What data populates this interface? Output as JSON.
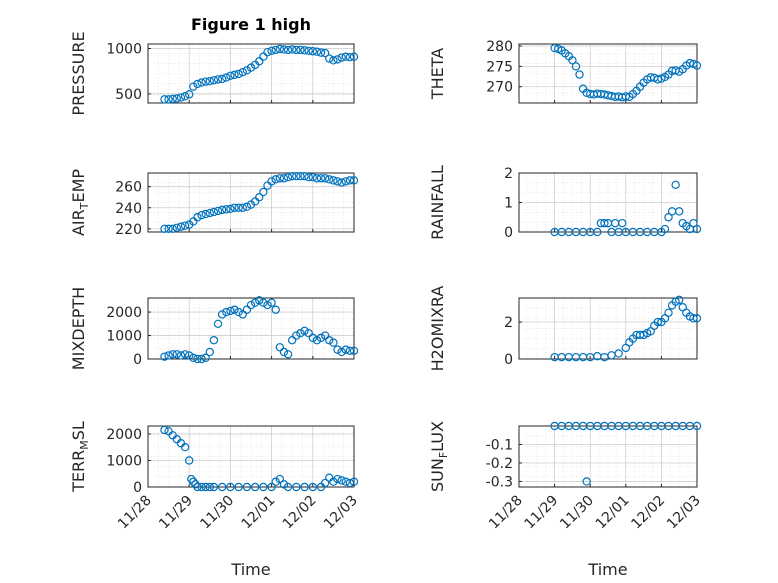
{
  "figure": {
    "title": "Figure 1 high",
    "marker_color": "#0072bd",
    "axis_color": "#262626",
    "grid_color": "#dcdcdc"
  },
  "x_ticks": [
    "11/28",
    "11/29",
    "11/30",
    "12/01",
    "12/02",
    "12/03"
  ],
  "x_label": "Time",
  "chart_data": [
    {
      "type": "scatter",
      "ylabel": "PRESSURE",
      "xlim": [
        0,
        5
      ],
      "ylim": [
        400,
        1050
      ],
      "yticks": [
        500,
        1000
      ],
      "x": [
        0.4,
        0.5,
        0.6,
        0.7,
        0.8,
        0.9,
        1.0,
        1.1,
        1.2,
        1.3,
        1.4,
        1.5,
        1.6,
        1.7,
        1.8,
        1.9,
        2.0,
        2.1,
        2.2,
        2.3,
        2.4,
        2.5,
        2.6,
        2.7,
        2.8,
        2.9,
        3.0,
        3.1,
        3.2,
        3.3,
        3.4,
        3.5,
        3.6,
        3.7,
        3.8,
        3.9,
        4.0,
        4.1,
        4.2,
        4.3,
        4.4,
        4.5,
        4.6,
        4.7,
        4.8,
        4.9,
        5.0
      ],
      "y": [
        440,
        440,
        445,
        450,
        460,
        475,
        495,
        580,
        610,
        625,
        635,
        640,
        650,
        660,
        665,
        680,
        700,
        710,
        720,
        740,
        760,
        790,
        820,
        860,
        910,
        960,
        975,
        985,
        995,
        990,
        985,
        990,
        985,
        985,
        980,
        975,
        970,
        965,
        955,
        950,
        890,
        870,
        880,
        900,
        910,
        905,
        910
      ]
    },
    {
      "type": "scatter",
      "ylabel": "THETA",
      "xlim": [
        0,
        5
      ],
      "ylim": [
        266,
        280.5
      ],
      "yticks": [
        270,
        275,
        280
      ],
      "x": [
        1.0,
        1.1,
        1.2,
        1.3,
        1.4,
        1.5,
        1.6,
        1.7,
        1.8,
        1.9,
        2.0,
        2.1,
        2.2,
        2.3,
        2.4,
        2.5,
        2.6,
        2.7,
        2.8,
        2.9,
        3.0,
        3.1,
        3.2,
        3.3,
        3.4,
        3.5,
        3.6,
        3.7,
        3.8,
        3.9,
        4.0,
        4.1,
        4.2,
        4.3,
        4.4,
        4.5,
        4.6,
        4.7,
        4.8,
        4.9,
        5.0
      ],
      "y": [
        279.5,
        279.3,
        278.9,
        278.2,
        277.5,
        276.5,
        275.0,
        273,
        269.5,
        268.5,
        268.2,
        268.1,
        268.3,
        268.2,
        268.1,
        267.9,
        267.7,
        267.5,
        267.6,
        267.4,
        267.6,
        267.5,
        268.2,
        269,
        270,
        271,
        271.8,
        272.3,
        272.2,
        271.8,
        272,
        272.4,
        273,
        273.9,
        274,
        273.7,
        274.3,
        275.2,
        275.8,
        275.6,
        275.2
      ]
    },
    {
      "type": "scatter",
      "ylabel": "AIR",
      "ylabel_sub": "T",
      "ylabel_rest": "EMP",
      "xlim": [
        0,
        5
      ],
      "ylim": [
        217,
        273
      ],
      "yticks": [
        220,
        240,
        260
      ],
      "x": [
        0.4,
        0.5,
        0.6,
        0.7,
        0.8,
        0.9,
        1.0,
        1.1,
        1.2,
        1.3,
        1.4,
        1.5,
        1.6,
        1.7,
        1.8,
        1.9,
        2.0,
        2.1,
        2.2,
        2.3,
        2.4,
        2.5,
        2.6,
        2.7,
        2.8,
        2.9,
        3.0,
        3.1,
        3.2,
        3.3,
        3.4,
        3.5,
        3.6,
        3.7,
        3.8,
        3.9,
        4.0,
        4.1,
        4.2,
        4.3,
        4.4,
        4.5,
        4.6,
        4.7,
        4.8,
        4.9,
        5.0
      ],
      "y": [
        220,
        220,
        220,
        221,
        222,
        223,
        224,
        227,
        231,
        233,
        234,
        235,
        236,
        237,
        238,
        238.5,
        239,
        240,
        240,
        240,
        241,
        243,
        246,
        250,
        255,
        261,
        265,
        267,
        268,
        268,
        269,
        270,
        270,
        270,
        270,
        269,
        269,
        268,
        268,
        268,
        267,
        266,
        265,
        264,
        265,
        266,
        266
      ]
    },
    {
      "type": "scatter",
      "ylabel": "RAINFALL",
      "xlim": [
        0,
        5
      ],
      "ylim": [
        0,
        2
      ],
      "yticks": [
        0,
        1,
        2
      ],
      "x": [
        1.0,
        1.2,
        1.4,
        1.6,
        1.8,
        2.0,
        2.2,
        2.3,
        2.4,
        2.5,
        2.6,
        2.7,
        2.8,
        2.9,
        3.0,
        3.2,
        3.4,
        3.6,
        3.8,
        4.0,
        4.1,
        4.2,
        4.3,
        4.4,
        4.5,
        4.6,
        4.7,
        4.8,
        4.9,
        5.0
      ],
      "y": [
        0,
        0,
        0,
        0,
        0,
        0,
        0,
        0.3,
        0.3,
        0.3,
        0,
        0.3,
        0,
        0.3,
        0,
        0,
        0,
        0,
        0,
        0,
        0.1,
        0.5,
        0.7,
        1.6,
        0.7,
        0.3,
        0.2,
        0.1,
        0.3,
        0.1
      ]
    },
    {
      "type": "scatter",
      "ylabel": "MIXDEPTH",
      "xlim": [
        0,
        5
      ],
      "ylim": [
        0,
        2600
      ],
      "yticks": [
        0,
        1000,
        2000
      ],
      "x": [
        0.4,
        0.5,
        0.6,
        0.7,
        0.8,
        0.9,
        1.0,
        1.1,
        1.2,
        1.3,
        1.4,
        1.5,
        1.6,
        1.7,
        1.8,
        1.9,
        2.0,
        2.1,
        2.2,
        2.3,
        2.4,
        2.5,
        2.6,
        2.7,
        2.8,
        2.9,
        3.0,
        3.1,
        3.2,
        3.3,
        3.4,
        3.5,
        3.6,
        3.7,
        3.8,
        3.9,
        4.0,
        4.1,
        4.2,
        4.3,
        4.4,
        4.5,
        4.6,
        4.7,
        4.8,
        4.9,
        5.0
      ],
      "y": [
        100,
        150,
        200,
        200,
        150,
        200,
        150,
        50,
        0,
        0,
        50,
        300,
        800,
        1500,
        1900,
        2000,
        2050,
        2100,
        2000,
        1900,
        2100,
        2300,
        2400,
        2500,
        2400,
        2300,
        2400,
        2100,
        500,
        300,
        200,
        800,
        1000,
        1100,
        1200,
        1100,
        900,
        800,
        900,
        1000,
        800,
        700,
        400,
        300,
        400,
        350,
        350
      ]
    },
    {
      "type": "scatter",
      "ylabel": "H2OMIXRA",
      "xlim": [
        0,
        5
      ],
      "ylim": [
        0,
        3.3
      ],
      "yticks": [
        0,
        2
      ],
      "x": [
        1.0,
        1.2,
        1.4,
        1.6,
        1.8,
        2.0,
        2.2,
        2.4,
        2.6,
        2.8,
        3.0,
        3.1,
        3.2,
        3.3,
        3.4,
        3.5,
        3.6,
        3.7,
        3.8,
        3.9,
        4.0,
        4.1,
        4.2,
        4.3,
        4.4,
        4.5,
        4.6,
        4.7,
        4.8,
        4.9,
        5.0
      ],
      "y": [
        0.1,
        0.1,
        0.1,
        0.1,
        0.1,
        0.1,
        0.15,
        0.1,
        0.2,
        0.3,
        0.6,
        0.9,
        1.1,
        1.3,
        1.3,
        1.3,
        1.4,
        1.5,
        1.8,
        2.0,
        2.0,
        2.2,
        2.5,
        2.9,
        3.1,
        3.2,
        2.8,
        2.5,
        2.3,
        2.2,
        2.2
      ]
    },
    {
      "type": "scatter",
      "ylabel": "TERR",
      "ylabel_sub": "M",
      "ylabel_rest": "SL",
      "xlim": [
        0,
        5
      ],
      "ylim": [
        0,
        2300
      ],
      "yticks": [
        0,
        1000,
        2000
      ],
      "x": [
        0.4,
        0.5,
        0.6,
        0.7,
        0.8,
        0.9,
        1.0,
        1.05,
        1.1,
        1.15,
        1.2,
        1.3,
        1.4,
        1.5,
        1.6,
        1.8,
        2.0,
        2.2,
        2.4,
        2.6,
        2.8,
        3.0,
        3.1,
        3.2,
        3.3,
        3.4,
        3.6,
        3.8,
        4.0,
        4.2,
        4.3,
        4.4,
        4.5,
        4.6,
        4.7,
        4.8,
        4.9,
        5.0
      ],
      "y": [
        2150,
        2100,
        1950,
        1800,
        1650,
        1500,
        1000,
        300,
        200,
        100,
        0,
        0,
        0,
        0,
        0,
        0,
        0,
        0,
        0,
        0,
        0,
        0,
        200,
        300,
        100,
        0,
        0,
        0,
        0,
        0,
        150,
        350,
        200,
        300,
        250,
        200,
        150,
        200
      ]
    },
    {
      "type": "scatter",
      "ylabel": "SUN",
      "ylabel_sub": "F",
      "ylabel_rest": "LUX",
      "xlim": [
        0,
        5
      ],
      "ylim": [
        -0.33,
        0
      ],
      "yticks": [
        -0.1,
        -0.2,
        -0.3
      ],
      "x": [
        1.0,
        1.2,
        1.4,
        1.6,
        1.8,
        2.0,
        2.2,
        2.4,
        2.6,
        2.8,
        3.0,
        3.2,
        3.4,
        3.6,
        3.8,
        4.0,
        4.2,
        4.4,
        4.6,
        4.8,
        5.0,
        1.9
      ],
      "y": [
        0,
        0,
        0,
        0,
        0,
        0,
        0,
        0,
        0,
        0,
        0,
        0,
        0,
        0,
        0,
        0,
        0,
        0,
        0,
        0,
        0,
        -0.3
      ]
    }
  ]
}
